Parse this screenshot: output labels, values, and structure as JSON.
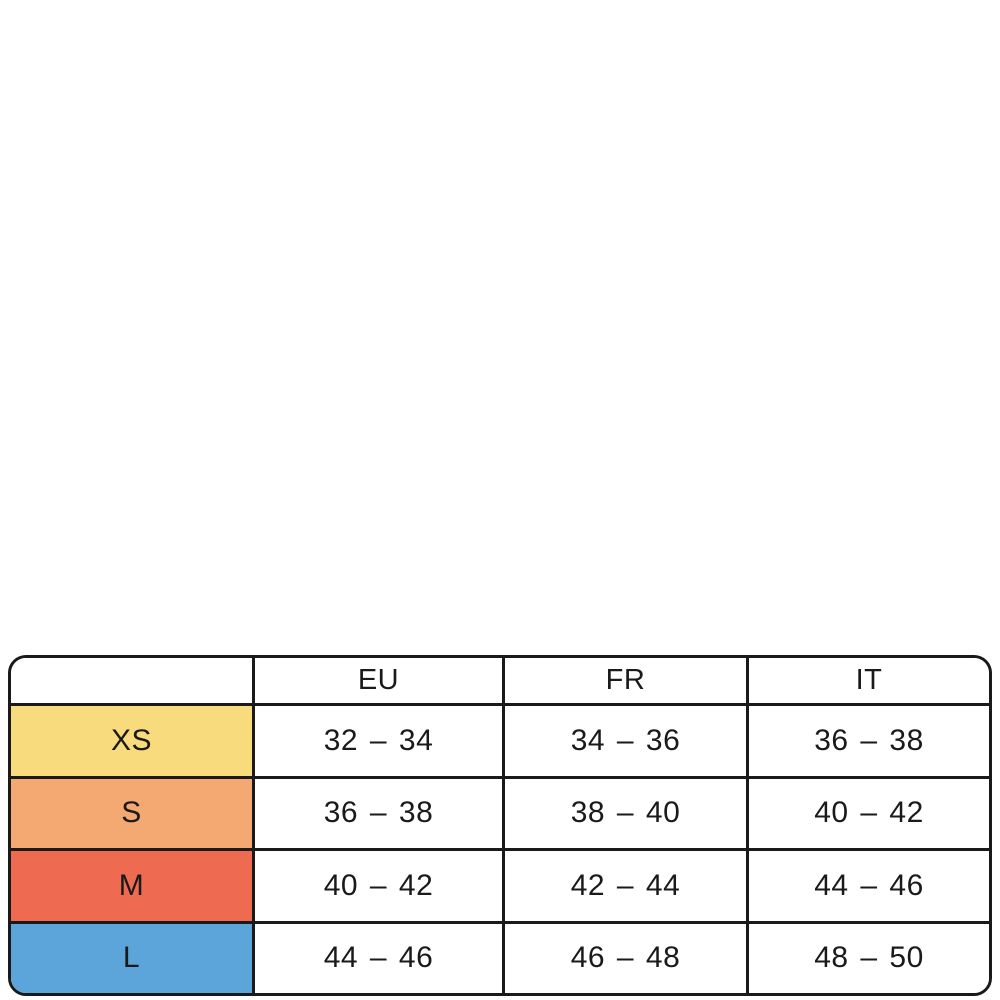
{
  "colors": {
    "line": "#1a1a1a",
    "text": "#1a1a1a"
  },
  "chart_data": {
    "type": "table",
    "columns": [
      "",
      "EU",
      "FR",
      "IT"
    ],
    "rows": [
      {
        "size": "XS",
        "row_color": "#F8DB7C",
        "eu": "32 – 34",
        "fr": "34 – 36",
        "it": "36 – 38"
      },
      {
        "size": "S",
        "row_color": "#F4A872",
        "eu": "36 – 38",
        "fr": "38 – 40",
        "it": "40 – 42"
      },
      {
        "size": "M",
        "row_color": "#EE6B52",
        "eu": "40 – 42",
        "fr": "42 – 44",
        "it": "44 – 46"
      },
      {
        "size": "L",
        "row_color": "#5CA5DA",
        "eu": "44 – 46",
        "fr": "46 – 48",
        "it": "48 – 50"
      }
    ]
  }
}
